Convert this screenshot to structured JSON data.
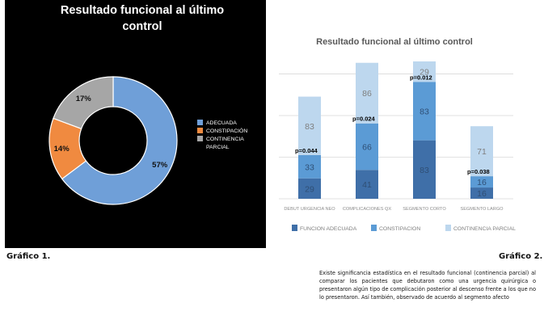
{
  "figures": {
    "caption_1": "Gráfico   1.",
    "caption_2": "Gráfico   2.",
    "note": "Existe significancia estadística en el resultado funcional (continencia parcial) al comparar los pacientes que debutaron como una urgencia quirúrgica o presentaron algún tipo de complicación posterior al descenso frente a los que no lo presentaron. Así también, observado de acuerdo al segmento afecto"
  },
  "chart_data": [
    {
      "type": "pie",
      "variant": "donut",
      "title": "Resultado funcional al último control",
      "labels": [
        "ADECUADA",
        "CONSTIPACIÓN",
        "CONTINENCIA PARCIAL"
      ],
      "values": [
        57,
        14,
        17
      ],
      "value_labels": [
        "57%",
        "14%",
        "17%"
      ],
      "colors": [
        "#6f9fd8",
        "#f08a40",
        "#a6a6a6"
      ],
      "background": "#000000",
      "legend_position": "right"
    },
    {
      "type": "bar",
      "stacked": true,
      "title": "Resultado funcional al último control",
      "categories": [
        "DEBUT URGENCIA NEO",
        "COMPLICACIONES QX",
        "SEGMENTO CORTO",
        "SEGMENTO LARGO"
      ],
      "series": [
        {
          "name": "FUNCION ADECUADA",
          "values": [
            29,
            41,
            83,
            16
          ],
          "color": "#3f6fa8"
        },
        {
          "name": "CONSTIPACION",
          "values": [
            33,
            66,
            83,
            16
          ],
          "color": "#5b9bd5"
        },
        {
          "name": "CONTINENCIA PARCIAL",
          "values": [
            83,
            86,
            29,
            71
          ],
          "color": "#bdd7ee"
        }
      ],
      "annotations": [
        "p=0.044",
        "p=0.024",
        "p=0.012",
        "p=0.038"
      ],
      "grid": true,
      "legend_position": "bottom"
    }
  ]
}
